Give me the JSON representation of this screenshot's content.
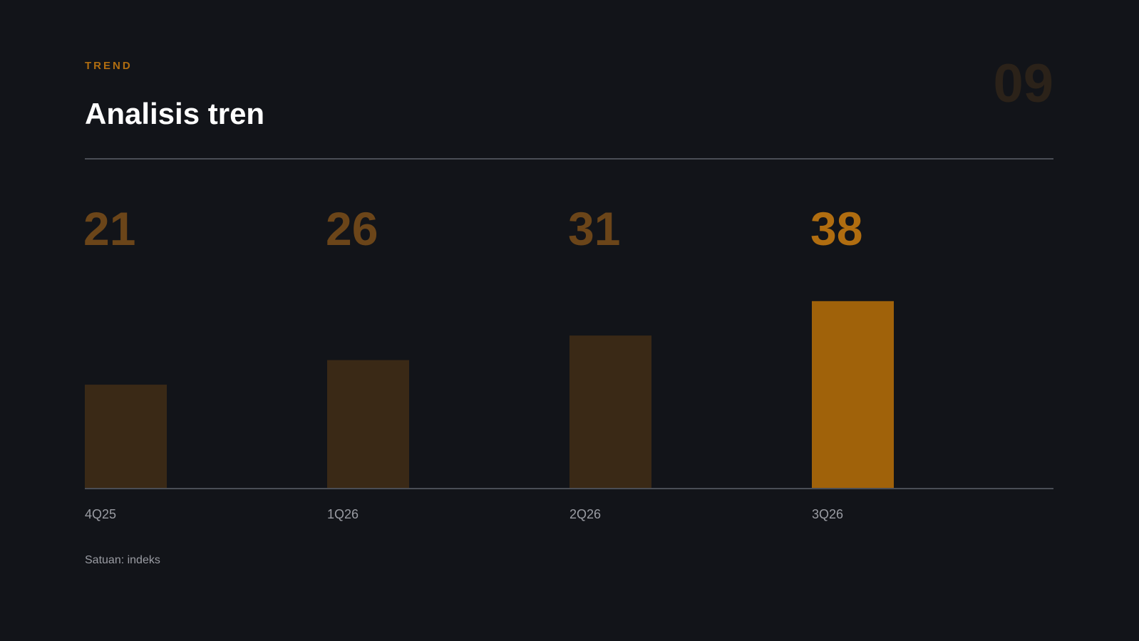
{
  "eyebrow": "TREND",
  "page_number": "09",
  "note": "Satuan: indeks",
  "chart_data": {
    "type": "bar",
    "title": "Analisis tren",
    "categories": [
      "4Q25",
      "1Q26",
      "2Q26",
      "3Q26"
    ],
    "values": [
      21,
      26,
      31,
      38
    ],
    "colors": [
      "#3a2916",
      "#3a2916",
      "#3a2916",
      "#a0620a"
    ],
    "label_colors": [
      "#6b4519",
      "#6b4519",
      "#6b4519",
      "#b06d10"
    ]
  }
}
